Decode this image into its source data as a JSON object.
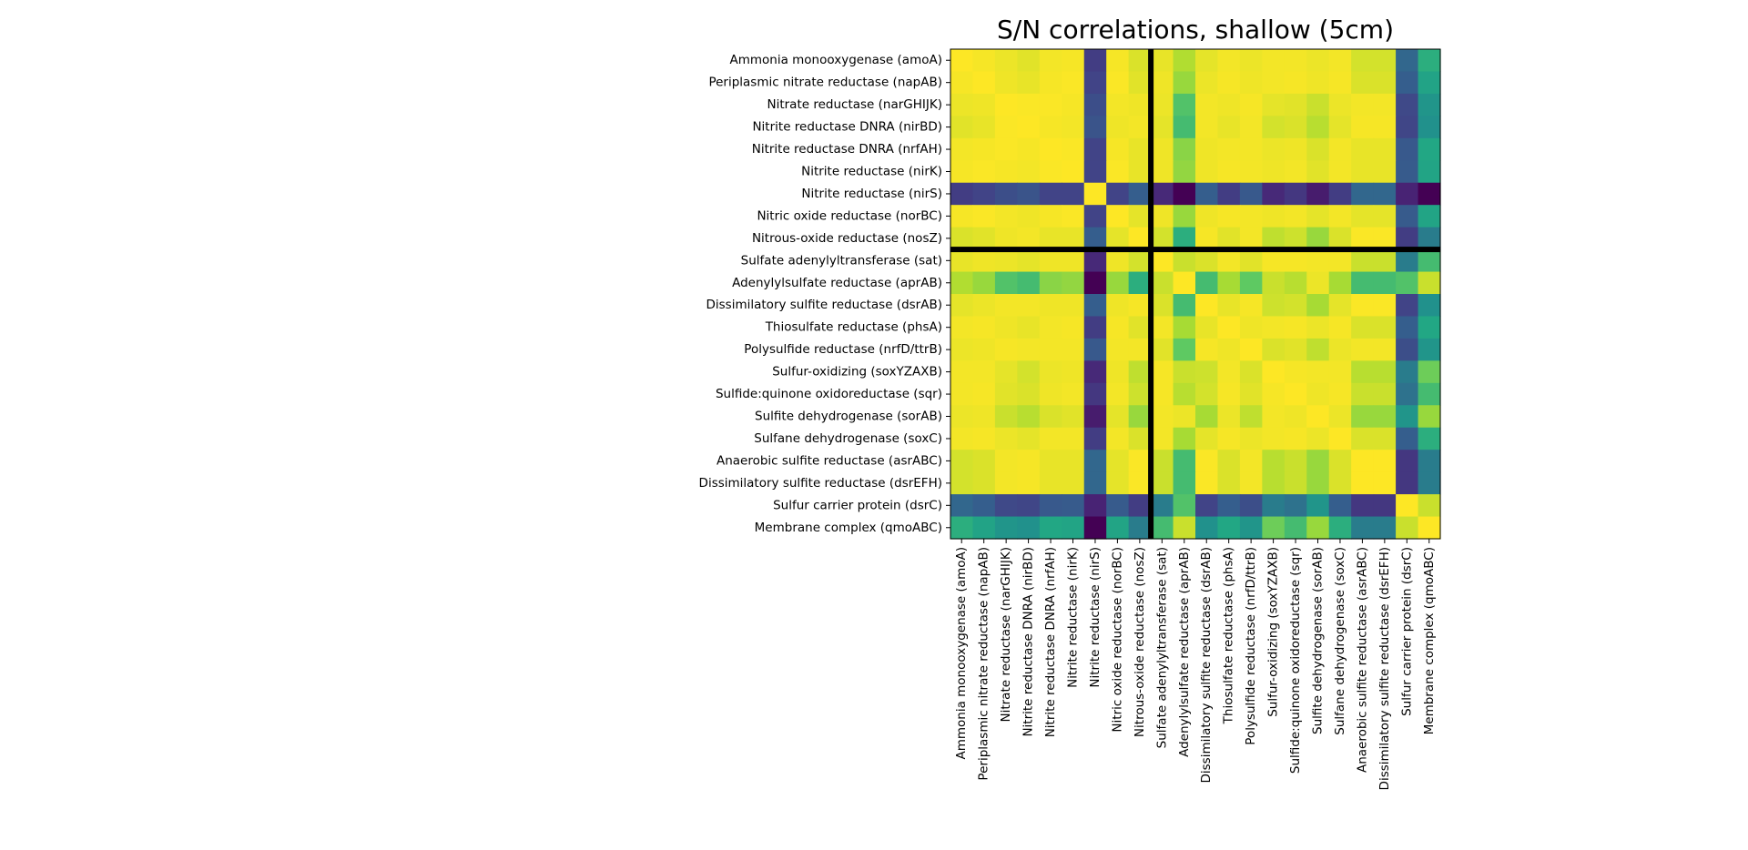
{
  "chart_data": {
    "type": "heatmap",
    "title": "S/N correlations, shallow (5cm)",
    "xlabel": "",
    "ylabel": "",
    "colormap": "viridis",
    "value_range": [
      -1,
      1
    ],
    "labels": [
      "Ammonia monooxygenase (amoA)",
      "Periplasmic nitrate reductase (napAB)",
      "Nitrate reductase (narGHIJK)",
      "Nitrite reductase DNRA (nirBD)",
      "Nitrite reductase DNRA (nrfAH)",
      "Nitrite reductase (nirK)",
      "Nitrite reductase (nirS)",
      "Nitric oxide reductase (norBC)",
      "Nitrous-oxide reductase (nosZ)",
      "Sulfate adenylyltransferase (sat)",
      "Adenylylsulfate reductase (aprAB)",
      "Dissimilatory sulfite reductase (dsrAB)",
      "Thiosulfate reductase (phsA)",
      "Polysulfide reductase (nrfD/ttrB)",
      "Sulfur-oxidizing (soxYZAXB)",
      "Sulfide:quinone oxidoreductase (sqr)",
      "Sulfite dehydrogenase (sorAB)",
      "Sulfane dehydrogenase (soxC)",
      "Anaerobic sulfite reductase (asrABC)",
      "Dissimilatory sulfite reductase (dsrEFH)",
      "Sulfur carrier protein (dsrC)",
      "Membrane complex (qmoABC)"
    ],
    "separator_after_index": 8,
    "matrix": [
      [
        1.0,
        0.98,
        0.95,
        0.92,
        0.97,
        0.98,
        -0.55,
        0.98,
        0.9,
        0.94,
        0.78,
        0.93,
        0.97,
        0.95,
        0.97,
        0.97,
        0.95,
        0.97,
        0.88,
        0.88,
        -0.2,
        0.3
      ],
      [
        0.98,
        1.0,
        0.96,
        0.94,
        0.98,
        0.99,
        -0.5,
        0.99,
        0.92,
        0.96,
        0.7,
        0.95,
        0.98,
        0.96,
        0.97,
        0.98,
        0.96,
        0.98,
        0.9,
        0.9,
        -0.25,
        0.2
      ],
      [
        0.95,
        0.96,
        1.0,
        0.99,
        0.99,
        0.98,
        -0.4,
        0.97,
        0.96,
        0.95,
        0.45,
        0.97,
        0.96,
        0.98,
        0.93,
        0.92,
        0.85,
        0.95,
        0.97,
        0.97,
        -0.45,
        0.05
      ],
      [
        0.92,
        0.94,
        0.99,
        1.0,
        0.98,
        0.97,
        -0.35,
        0.96,
        0.97,
        0.93,
        0.4,
        0.97,
        0.94,
        0.97,
        0.88,
        0.9,
        0.8,
        0.93,
        0.98,
        0.98,
        -0.48,
        0.0
      ],
      [
        0.97,
        0.98,
        0.99,
        0.98,
        1.0,
        0.99,
        -0.5,
        0.98,
        0.94,
        0.96,
        0.65,
        0.96,
        0.97,
        0.97,
        0.95,
        0.96,
        0.9,
        0.97,
        0.94,
        0.94,
        -0.3,
        0.25
      ],
      [
        0.98,
        0.99,
        0.98,
        0.97,
        0.99,
        1.0,
        -0.5,
        0.99,
        0.94,
        0.96,
        0.68,
        0.96,
        0.98,
        0.97,
        0.96,
        0.97,
        0.92,
        0.97,
        0.94,
        0.94,
        -0.28,
        0.22
      ],
      [
        -0.55,
        -0.5,
        -0.4,
        -0.35,
        -0.5,
        -0.5,
        1.0,
        -0.5,
        -0.25,
        -0.7,
        -1.0,
        -0.25,
        -0.55,
        -0.3,
        -0.7,
        -0.6,
        -0.8,
        -0.55,
        -0.2,
        -0.2,
        -0.75,
        -1.0
      ],
      [
        0.98,
        0.99,
        0.97,
        0.96,
        0.98,
        0.99,
        -0.5,
        1.0,
        0.93,
        0.96,
        0.7,
        0.96,
        0.98,
        0.97,
        0.96,
        0.97,
        0.93,
        0.97,
        0.93,
        0.93,
        -0.28,
        0.22
      ],
      [
        0.9,
        0.92,
        0.96,
        0.97,
        0.94,
        0.94,
        -0.25,
        0.93,
        1.0,
        0.88,
        0.3,
        0.98,
        0.92,
        0.97,
        0.82,
        0.86,
        0.7,
        0.9,
        0.99,
        0.99,
        -0.55,
        -0.1
      ],
      [
        0.94,
        0.96,
        0.95,
        0.93,
        0.96,
        0.96,
        -0.7,
        0.96,
        0.88,
        1.0,
        0.85,
        0.9,
        0.97,
        0.92,
        0.98,
        0.98,
        0.97,
        0.97,
        0.85,
        0.85,
        -0.1,
        0.4
      ],
      [
        0.78,
        0.7,
        0.45,
        0.4,
        0.65,
        0.68,
        -1.0,
        0.7,
        0.3,
        0.85,
        1.0,
        0.4,
        0.75,
        0.5,
        0.85,
        0.8,
        0.95,
        0.75,
        0.4,
        0.4,
        0.45,
        0.85
      ],
      [
        0.93,
        0.95,
        0.97,
        0.97,
        0.96,
        0.96,
        -0.25,
        0.96,
        0.98,
        0.9,
        0.4,
        1.0,
        0.94,
        0.98,
        0.86,
        0.88,
        0.75,
        0.93,
        0.99,
        0.99,
        -0.5,
        0.0
      ],
      [
        0.97,
        0.98,
        0.96,
        0.94,
        0.97,
        0.98,
        -0.55,
        0.98,
        0.92,
        0.97,
        0.75,
        0.94,
        1.0,
        0.96,
        0.97,
        0.98,
        0.95,
        0.98,
        0.9,
        0.9,
        -0.25,
        0.25
      ],
      [
        0.95,
        0.96,
        0.98,
        0.97,
        0.97,
        0.97,
        -0.3,
        0.97,
        0.97,
        0.92,
        0.5,
        0.98,
        0.96,
        1.0,
        0.9,
        0.92,
        0.82,
        0.95,
        0.97,
        0.97,
        -0.4,
        0.05
      ],
      [
        0.97,
        0.97,
        0.93,
        0.88,
        0.95,
        0.96,
        -0.7,
        0.96,
        0.82,
        0.98,
        0.85,
        0.86,
        0.97,
        0.9,
        1.0,
        0.98,
        0.97,
        0.97,
        0.8,
        0.8,
        -0.1,
        0.55
      ],
      [
        0.97,
        0.98,
        0.92,
        0.9,
        0.96,
        0.97,
        -0.6,
        0.97,
        0.86,
        0.98,
        0.8,
        0.88,
        0.98,
        0.92,
        0.98,
        1.0,
        0.96,
        0.98,
        0.85,
        0.85,
        -0.15,
        0.4
      ],
      [
        0.95,
        0.96,
        0.85,
        0.8,
        0.9,
        0.92,
        -0.8,
        0.93,
        0.7,
        0.97,
        0.95,
        0.75,
        0.95,
        0.82,
        0.97,
        0.96,
        1.0,
        0.95,
        0.7,
        0.7,
        0.05,
        0.7
      ],
      [
        0.97,
        0.98,
        0.95,
        0.93,
        0.97,
        0.97,
        -0.55,
        0.97,
        0.9,
        0.97,
        0.75,
        0.93,
        0.98,
        0.95,
        0.97,
        0.98,
        0.95,
        1.0,
        0.9,
        0.9,
        -0.25,
        0.3
      ],
      [
        0.88,
        0.9,
        0.97,
        0.98,
        0.94,
        0.94,
        -0.2,
        0.93,
        0.99,
        0.85,
        0.4,
        0.99,
        0.9,
        0.97,
        0.8,
        0.85,
        0.7,
        0.9,
        1.0,
        1.0,
        -0.6,
        -0.1
      ],
      [
        0.88,
        0.9,
        0.97,
        0.98,
        0.94,
        0.94,
        -0.2,
        0.93,
        0.99,
        0.85,
        0.4,
        0.99,
        0.9,
        0.97,
        0.8,
        0.85,
        0.7,
        0.9,
        1.0,
        1.0,
        -0.6,
        -0.1
      ],
      [
        -0.2,
        -0.25,
        -0.45,
        -0.48,
        -0.3,
        -0.28,
        -0.75,
        -0.28,
        -0.55,
        -0.1,
        0.45,
        -0.5,
        -0.25,
        -0.4,
        -0.1,
        -0.15,
        0.05,
        -0.25,
        -0.6,
        -0.6,
        1.0,
        0.85
      ],
      [
        0.3,
        0.2,
        0.05,
        0.0,
        0.25,
        0.22,
        -1.0,
        0.22,
        -0.1,
        0.4,
        0.85,
        0.0,
        0.25,
        0.05,
        0.55,
        0.4,
        0.7,
        0.3,
        -0.1,
        -0.1,
        0.85,
        1.0
      ]
    ]
  }
}
